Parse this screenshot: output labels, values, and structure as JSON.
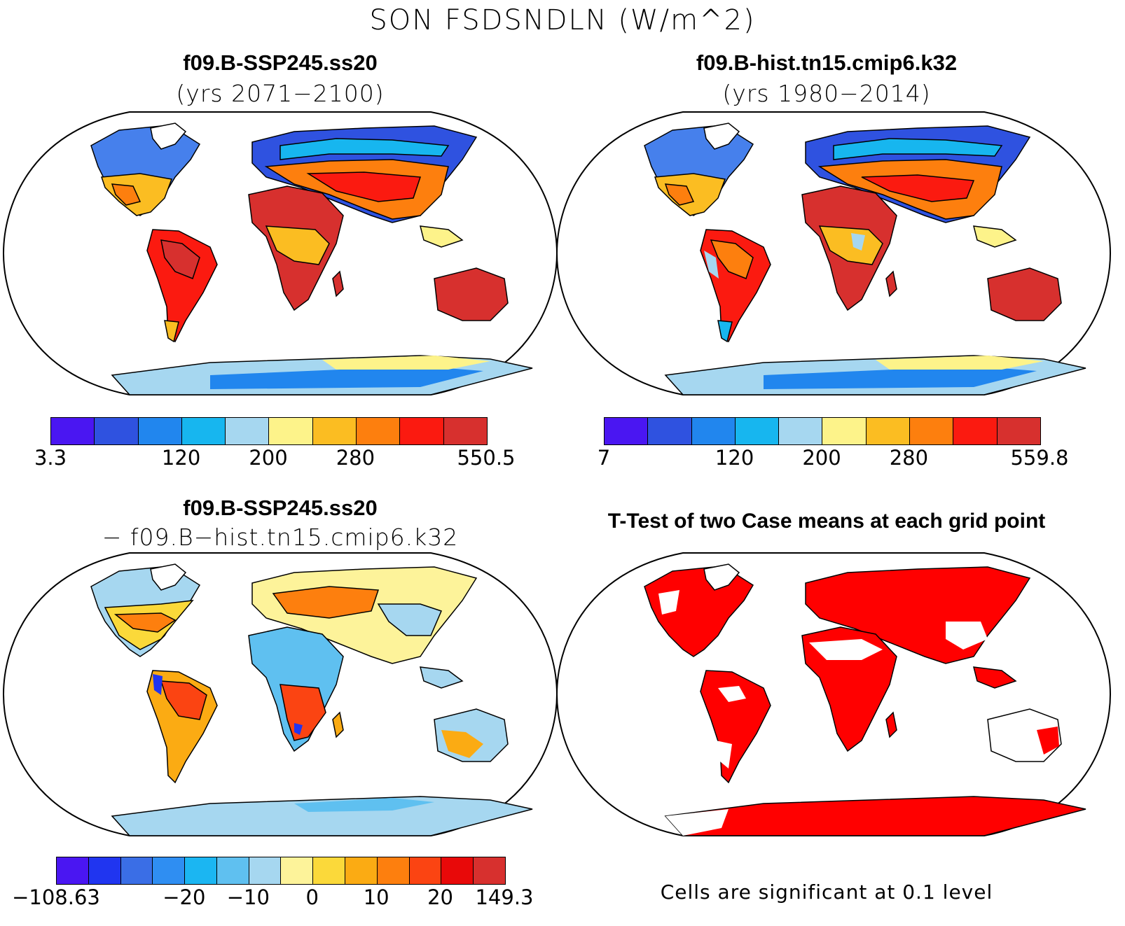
{
  "figure": {
    "title": "SON FSDSNDLN (W/m^2)"
  },
  "panels": {
    "top_left": {
      "title": "f09.B-SSP245.ss20",
      "subtitle": "(yrs 2071−2100)",
      "colorbar": {
        "colors": [
          "#4a16f2",
          "#2f52e0",
          "#2186ee",
          "#17b6ef",
          "#a6d7f0",
          "#fdf38a",
          "#fbbd22",
          "#fd7f0e",
          "#fb1a10",
          "#d7302e"
        ],
        "labels": [
          {
            "text": "3.3",
            "pos": 0
          },
          {
            "text": "120",
            "pos": 0.3
          },
          {
            "text": "200",
            "pos": 0.5
          },
          {
            "text": "280",
            "pos": 0.7
          },
          {
            "text": "550.5",
            "pos": 1
          }
        ]
      }
    },
    "top_right": {
      "title": "f09.B-hist.tn15.cmip6.k32",
      "subtitle": "(yrs 1980−2014)",
      "colorbar": {
        "colors": [
          "#4a16f2",
          "#2f52e0",
          "#2186ee",
          "#17b6ef",
          "#a6d7f0",
          "#fdf38a",
          "#fbbd22",
          "#fd7f0e",
          "#fb1a10",
          "#d7302e"
        ],
        "labels": [
          {
            "text": "7",
            "pos": 0
          },
          {
            "text": "120",
            "pos": 0.3
          },
          {
            "text": "200",
            "pos": 0.5
          },
          {
            "text": "280",
            "pos": 0.7
          },
          {
            "text": "559.8",
            "pos": 1
          }
        ]
      }
    },
    "bottom_left": {
      "title": "f09.B-SSP245.ss20",
      "subtitle": "− f09.B−hist.tn15.cmip6.k32",
      "colorbar": {
        "colors": [
          "#4a16f2",
          "#2035f0",
          "#3a6ee6",
          "#2f8ef2",
          "#1bb6f2",
          "#5fc0f0",
          "#a6d7f0",
          "#fdf39a",
          "#fbd93a",
          "#fbab13",
          "#fd7f0e",
          "#fb4412",
          "#e80909",
          "#d7302e"
        ],
        "labels": [
          {
            "text": "−108.63",
            "pos": 0
          },
          {
            "text": "−20",
            "pos": 0.2857
          },
          {
            "text": "−10",
            "pos": 0.4286
          },
          {
            "text": "0",
            "pos": 0.5714
          },
          {
            "text": "10",
            "pos": 0.7143
          },
          {
            "text": "20",
            "pos": 0.8571
          },
          {
            "text": "149.3",
            "pos": 1
          }
        ]
      }
    },
    "bottom_right": {
      "title": "T-Test of two Case means at each grid point",
      "footnote": "Cells are significant at 0.1 level",
      "significant_color": "#ff0000"
    }
  }
}
